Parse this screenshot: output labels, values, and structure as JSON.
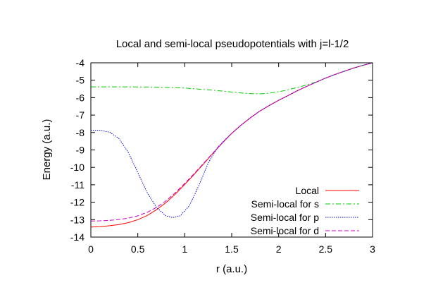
{
  "chart_data": {
    "type": "line",
    "title": "Local and semi-local pseudopotentials with j=l-1/2",
    "xlabel": "r (a.u.)",
    "ylabel": "Energy (a.u.)",
    "xlim": [
      0,
      3
    ],
    "ylim": [
      -14,
      -4
    ],
    "xticks": [
      0,
      0.5,
      1,
      1.5,
      2,
      2.5,
      3
    ],
    "xtick_labels": [
      "0",
      "0.5",
      "1",
      "1.5",
      "2",
      "2.5",
      "3"
    ],
    "yticks": [
      -4,
      -5,
      -6,
      -7,
      -8,
      -9,
      -10,
      -11,
      -12,
      -13,
      -14
    ],
    "ytick_labels": [
      "-4",
      "-5",
      "-6",
      "-7",
      "-8",
      "-9",
      "-10",
      "-11",
      "-12",
      "-13",
      "-14"
    ],
    "grid": false,
    "legend_position": "bottom-right",
    "series": [
      {
        "name": "Local",
        "color": "#ff0000",
        "dash": "solid",
        "points": [
          [
            0,
            -13.42
          ],
          [
            0.1,
            -13.4
          ],
          [
            0.2,
            -13.35
          ],
          [
            0.3,
            -13.28
          ],
          [
            0.4,
            -13.17
          ],
          [
            0.5,
            -13.0
          ],
          [
            0.6,
            -12.76
          ],
          [
            0.7,
            -12.43
          ],
          [
            0.8,
            -12.02
          ],
          [
            0.9,
            -11.53
          ],
          [
            1.0,
            -10.98
          ],
          [
            1.1,
            -10.4
          ],
          [
            1.2,
            -9.8
          ],
          [
            1.3,
            -9.2
          ],
          [
            1.4,
            -8.6
          ],
          [
            1.5,
            -8.05
          ],
          [
            1.6,
            -7.58
          ],
          [
            1.7,
            -7.15
          ],
          [
            1.8,
            -6.77
          ],
          [
            1.9,
            -6.45
          ],
          [
            2.0,
            -6.15
          ],
          [
            2.1,
            -5.88
          ],
          [
            2.2,
            -5.6
          ],
          [
            2.3,
            -5.35
          ],
          [
            2.4,
            -5.11
          ],
          [
            2.5,
            -4.88
          ],
          [
            2.6,
            -4.67
          ],
          [
            2.7,
            -4.48
          ],
          [
            2.8,
            -4.3
          ],
          [
            2.9,
            -4.14
          ],
          [
            3.0,
            -4.0
          ]
        ]
      },
      {
        "name": "Semi-local for s",
        "color": "#00cc00",
        "dash": "dashdot",
        "points": [
          [
            0,
            -5.38
          ],
          [
            0.2,
            -5.38
          ],
          [
            0.4,
            -5.38
          ],
          [
            0.6,
            -5.39
          ],
          [
            0.8,
            -5.41
          ],
          [
            1.0,
            -5.45
          ],
          [
            1.2,
            -5.53
          ],
          [
            1.4,
            -5.62
          ],
          [
            1.5,
            -5.68
          ],
          [
            1.6,
            -5.73
          ],
          [
            1.7,
            -5.77
          ],
          [
            1.8,
            -5.78
          ],
          [
            1.9,
            -5.74
          ],
          [
            2.0,
            -5.66
          ],
          [
            2.1,
            -5.55
          ],
          [
            2.2,
            -5.41
          ],
          [
            2.3,
            -5.27
          ],
          [
            2.4,
            -5.1
          ],
          [
            2.5,
            -4.88
          ],
          [
            2.6,
            -4.67
          ],
          [
            2.7,
            -4.48
          ],
          [
            2.8,
            -4.3
          ],
          [
            2.9,
            -4.14
          ],
          [
            3.0,
            -4.0
          ]
        ]
      },
      {
        "name": "Semi-local for p",
        "color": "#0000cc",
        "dash": "dotted",
        "points": [
          [
            0,
            -7.87
          ],
          [
            0.1,
            -7.88
          ],
          [
            0.2,
            -7.98
          ],
          [
            0.3,
            -8.35
          ],
          [
            0.4,
            -9.15
          ],
          [
            0.5,
            -10.3
          ],
          [
            0.6,
            -11.45
          ],
          [
            0.7,
            -12.3
          ],
          [
            0.8,
            -12.78
          ],
          [
            0.87,
            -12.88
          ],
          [
            0.95,
            -12.78
          ],
          [
            1.05,
            -12.2
          ],
          [
            1.15,
            -11.05
          ],
          [
            1.25,
            -9.75
          ],
          [
            1.35,
            -8.85
          ],
          [
            1.45,
            -8.3
          ],
          [
            1.55,
            -7.8
          ],
          [
            1.6,
            -7.58
          ],
          [
            1.7,
            -7.15
          ],
          [
            1.8,
            -6.77
          ],
          [
            1.9,
            -6.45
          ],
          [
            2.0,
            -6.15
          ],
          [
            2.1,
            -5.88
          ],
          [
            2.2,
            -5.6
          ],
          [
            2.3,
            -5.35
          ],
          [
            2.4,
            -5.11
          ],
          [
            2.5,
            -4.88
          ],
          [
            2.6,
            -4.67
          ],
          [
            2.7,
            -4.48
          ],
          [
            2.8,
            -4.3
          ],
          [
            2.9,
            -4.14
          ],
          [
            3.0,
            -4.0
          ]
        ]
      },
      {
        "name": "Semi-local for d",
        "color": "#cc00cc",
        "dash": "dashed",
        "points": [
          [
            0,
            -13.08
          ],
          [
            0.1,
            -13.07
          ],
          [
            0.2,
            -13.04
          ],
          [
            0.3,
            -12.99
          ],
          [
            0.4,
            -12.91
          ],
          [
            0.5,
            -12.78
          ],
          [
            0.6,
            -12.58
          ],
          [
            0.7,
            -12.3
          ],
          [
            0.8,
            -11.92
          ],
          [
            0.9,
            -11.45
          ],
          [
            1.0,
            -10.92
          ],
          [
            1.1,
            -10.36
          ],
          [
            1.2,
            -9.77
          ],
          [
            1.3,
            -9.18
          ],
          [
            1.4,
            -8.6
          ],
          [
            1.5,
            -8.05
          ],
          [
            1.6,
            -7.58
          ],
          [
            1.7,
            -7.15
          ],
          [
            1.8,
            -6.77
          ],
          [
            1.9,
            -6.45
          ],
          [
            2.0,
            -6.15
          ],
          [
            2.1,
            -5.88
          ],
          [
            2.2,
            -5.6
          ],
          [
            2.3,
            -5.35
          ],
          [
            2.4,
            -5.11
          ],
          [
            2.5,
            -4.88
          ],
          [
            2.6,
            -4.67
          ],
          [
            2.7,
            -4.48
          ],
          [
            2.8,
            -4.3
          ],
          [
            2.9,
            -4.14
          ],
          [
            3.0,
            -4.0
          ]
        ]
      }
    ]
  }
}
